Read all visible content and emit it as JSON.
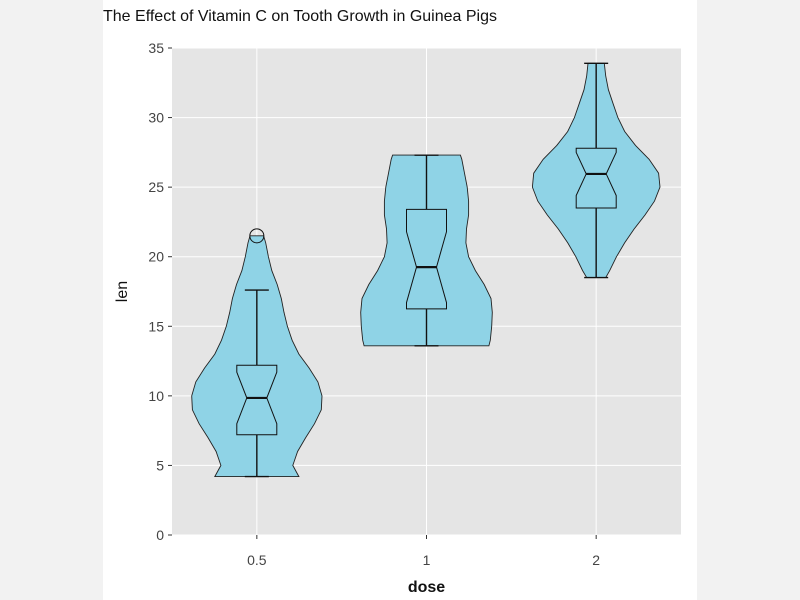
{
  "chart_data": {
    "type": "violin",
    "title": "The Effect of Vitamin C on Tooth Growth in Guinea Pigs",
    "xlabel": "dose",
    "ylabel": "len",
    "categories": [
      "0.5",
      "1",
      "2"
    ],
    "ylim": [
      0,
      35
    ],
    "yticks": [
      0,
      5,
      10,
      15,
      20,
      25,
      30,
      35
    ],
    "grid": true,
    "fill_color": "#8fd3e6",
    "panel_color": "#e5e5e5",
    "violins": [
      {
        "category": "0.5",
        "min": 4.2,
        "max": 21.5,
        "density": [
          [
            4.2,
            0.62
          ],
          [
            5,
            0.53
          ],
          [
            6,
            0.6
          ],
          [
            7,
            0.72
          ],
          [
            8,
            0.85
          ],
          [
            9,
            0.95
          ],
          [
            10,
            0.96
          ],
          [
            11,
            0.9
          ],
          [
            12,
            0.77
          ],
          [
            13,
            0.62
          ],
          [
            14,
            0.52
          ],
          [
            15,
            0.45
          ],
          [
            16,
            0.4
          ],
          [
            17,
            0.36
          ],
          [
            18,
            0.3
          ],
          [
            19,
            0.22
          ],
          [
            20,
            0.17
          ],
          [
            21,
            0.13
          ],
          [
            21.5,
            0.1
          ]
        ],
        "box": {
          "q1": 7.2,
          "median": 9.85,
          "q3": 12.2,
          "whisker_low": 4.2,
          "whisker_high": 17.6,
          "notch_low": 8.0,
          "notch_high": 11.7
        },
        "outliers": [
          21.5
        ]
      },
      {
        "category": "1",
        "min": 13.6,
        "max": 27.3,
        "density": [
          [
            13.6,
            0.92
          ],
          [
            14,
            0.94
          ],
          [
            15,
            0.96
          ],
          [
            16,
            0.97
          ],
          [
            17,
            0.95
          ],
          [
            18,
            0.85
          ],
          [
            19,
            0.72
          ],
          [
            20,
            0.62
          ],
          [
            21,
            0.58
          ],
          [
            22,
            0.59
          ],
          [
            23,
            0.62
          ],
          [
            24,
            0.62
          ],
          [
            25,
            0.6
          ],
          [
            26,
            0.56
          ],
          [
            27,
            0.52
          ],
          [
            27.3,
            0.5
          ]
        ],
        "box": {
          "q1": 16.25,
          "median": 19.25,
          "q3": 23.4,
          "whisker_low": 13.6,
          "whisker_high": 27.3,
          "notch_low": 16.7,
          "notch_high": 21.8
        },
        "outliers": []
      },
      {
        "category": "2",
        "min": 18.5,
        "max": 33.9,
        "density": [
          [
            18.5,
            0.14
          ],
          [
            19,
            0.2
          ],
          [
            20,
            0.3
          ],
          [
            21,
            0.42
          ],
          [
            22,
            0.56
          ],
          [
            23,
            0.72
          ],
          [
            24,
            0.86
          ],
          [
            25,
            0.94
          ],
          [
            26,
            0.92
          ],
          [
            27,
            0.78
          ],
          [
            28,
            0.58
          ],
          [
            29,
            0.42
          ],
          [
            30,
            0.32
          ],
          [
            31,
            0.25
          ],
          [
            32,
            0.18
          ],
          [
            33,
            0.14
          ],
          [
            33.9,
            0.12
          ]
        ],
        "box": {
          "q1": 23.5,
          "median": 25.95,
          "q3": 27.8,
          "whisker_low": 18.5,
          "whisker_high": 33.9,
          "notch_low": 24.4,
          "notch_high": 27.5
        },
        "outliers": []
      }
    ]
  }
}
